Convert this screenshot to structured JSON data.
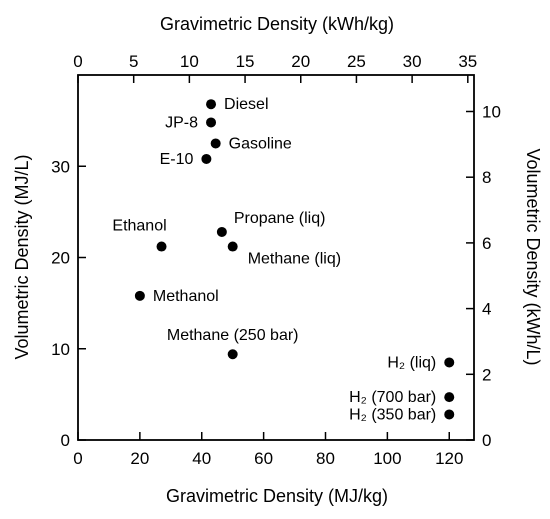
{
  "chart_data": {
    "type": "scatter",
    "xlabel": "Gravimetric Density (MJ/kg)",
    "ylabel": "Volumetric Density (MJ/L)",
    "x2label": "Gravimetric Density (kWh/kg)",
    "y2label": "Volumetric Density (kWh/L)",
    "xlim": [
      0,
      128
    ],
    "ylim": [
      0,
      40
    ],
    "x2lim": [
      0,
      35.556
    ],
    "y2lim": [
      0,
      11.111
    ],
    "xticks": [
      0,
      20,
      40,
      60,
      80,
      100,
      120
    ],
    "yticks": [
      0,
      10,
      20,
      30
    ],
    "x2ticks": [
      0,
      5,
      10,
      15,
      20,
      25,
      30,
      35
    ],
    "y2ticks": [
      0,
      2,
      4,
      6,
      8,
      10
    ],
    "grid": false,
    "points": [
      {
        "label": "Diesel",
        "x": 43.0,
        "y": 36.8,
        "pos": "right"
      },
      {
        "label": "JP-8",
        "x": 43.0,
        "y": 34.8,
        "pos": "left"
      },
      {
        "label": "Gasoline",
        "x": 44.5,
        "y": 32.5,
        "pos": "right"
      },
      {
        "label": "E-10",
        "x": 41.5,
        "y": 30.8,
        "pos": "left"
      },
      {
        "label": "Ethanol",
        "x": 27.0,
        "y": 21.2,
        "pos": "above-left"
      },
      {
        "label": "Propane (liq)",
        "x": 46.5,
        "y": 22.8,
        "pos": "above-right"
      },
      {
        "label": "Methane (liq)",
        "x": 50.0,
        "y": 21.2,
        "pos": "below-right"
      },
      {
        "label": "Methanol",
        "x": 20.0,
        "y": 15.8,
        "pos": "right"
      },
      {
        "label": "Methane (250 bar)",
        "x": 50.0,
        "y": 9.4,
        "pos": "above"
      },
      {
        "label": "H₂ (liq)",
        "x": 120.0,
        "y": 8.5,
        "pos": "left"
      },
      {
        "label": "H₂ (700 bar)",
        "x": 120.0,
        "y": 4.7,
        "pos": "left"
      },
      {
        "label": "H₂ (350 bar)",
        "x": 120.0,
        "y": 2.8,
        "pos": "left"
      }
    ]
  }
}
